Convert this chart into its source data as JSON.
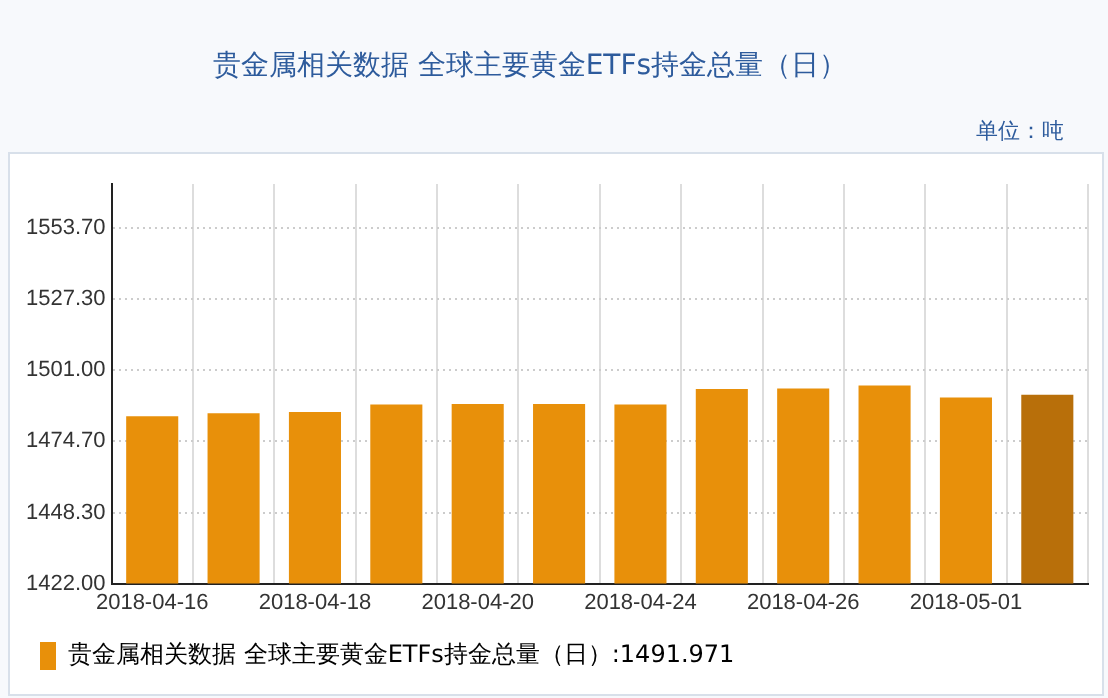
{
  "chart_data": {
    "type": "bar",
    "title": "贵金属相关数据 全球主要黄金ETFs持金总量（日）",
    "annotations": [
      "单位：吨"
    ],
    "categories": [
      "2018-04-16",
      null,
      "2018-04-18",
      null,
      "2018-04-20",
      null,
      "2018-04-24",
      null,
      "2018-04-26",
      null,
      "2018-05-01",
      null
    ],
    "series": [
      {
        "name": "贵金属相关数据 全球主要黄金ETFs持金总量（日）:1491.971",
        "color": "#e8900a",
        "colors": [
          "#e8900a",
          "#e8900a",
          "#e8900a",
          "#e8900a",
          "#e8900a",
          "#e8900a",
          "#e8900a",
          "#e8900a",
          "#e8900a",
          "#e8900a",
          "#e8900a",
          "#b86f0a"
        ],
        "values": [
          1484.0,
          1485.1,
          1485.6,
          1488.3,
          1488.5,
          1488.5,
          1488.3,
          1494.1,
          1494.3,
          1495.4,
          1490.9,
          1491.971
        ]
      }
    ],
    "ylim": [
      1422,
      1570
    ],
    "yticks": [
      {
        "value": 1422,
        "label": "1422.00"
      },
      {
        "value": 1448.3,
        "label": "1448.30"
      },
      {
        "value": 1474.7,
        "label": "1474.70"
      },
      {
        "value": 1501,
        "label": "1501.00"
      },
      {
        "value": 1527.3,
        "label": "1527.30"
      },
      {
        "value": 1553.7,
        "label": "1553.70"
      }
    ],
    "grid": true,
    "line_style": "dotted",
    "legend": "bottom"
  }
}
